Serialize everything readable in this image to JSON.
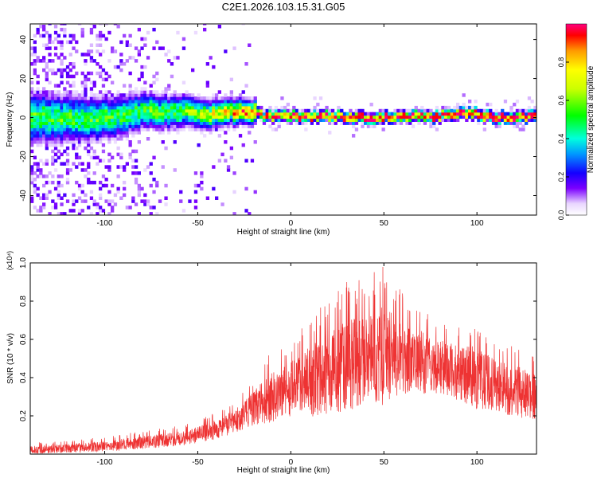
{
  "title": "C2E1.2026.103.15.31.G05",
  "colors": {
    "snr_line": "#ee3333",
    "axis": "#000000"
  },
  "chart_data": [
    {
      "type": "heatmap",
      "xlabel": "Height of straight line (km)",
      "ylabel": "Frequency (Hz)",
      "xlim": [
        -140,
        132
      ],
      "ylim": [
        -50,
        48
      ],
      "xticks": [
        -100,
        -50,
        0,
        50,
        100
      ],
      "yticks": [
        -40,
        -20,
        0,
        20,
        40
      ],
      "colorbar": {
        "label": "Normalized spectral amplitude",
        "range": [
          0,
          1
        ],
        "ticks": [
          0.0,
          0.2,
          0.4,
          0.6,
          0.8
        ],
        "colormap": "rainbow"
      },
      "ridge_center_hz": [
        [
          -140,
          0
        ],
        [
          -120,
          -1
        ],
        [
          -100,
          -1
        ],
        [
          -80,
          3
        ],
        [
          -60,
          2
        ],
        [
          -40,
          1
        ],
        [
          -25,
          3
        ],
        [
          -15,
          0
        ],
        [
          0,
          0
        ],
        [
          20,
          0
        ],
        [
          45,
          -1
        ],
        [
          60,
          0
        ],
        [
          80,
          0
        ],
        [
          95,
          2
        ],
        [
          110,
          -1
        ],
        [
          132,
          0
        ]
      ]
    },
    {
      "type": "line",
      "xlabel": "Height of straight line (km)",
      "ylabel": "SNR (10 * v/v)",
      "multiplier": "(x10⁴)",
      "xlim": [
        -140,
        132
      ],
      "ylim": [
        0,
        1.0
      ],
      "xticks": [
        -100,
        -50,
        0,
        50,
        100
      ],
      "yticks": [
        0.2,
        0.4,
        0.6,
        0.8,
        1.0
      ],
      "series": [
        {
          "x": [
            -140,
            -120,
            -100,
            -80,
            -60,
            -50,
            -40,
            -30,
            -20,
            -10,
            0,
            10,
            20,
            30,
            40,
            50,
            60,
            70,
            80,
            90,
            100,
            110,
            120,
            132
          ],
          "mean": [
            0.02,
            0.03,
            0.04,
            0.06,
            0.08,
            0.1,
            0.13,
            0.17,
            0.24,
            0.3,
            0.34,
            0.38,
            0.42,
            0.46,
            0.5,
            0.52,
            0.5,
            0.48,
            0.46,
            0.42,
            0.4,
            0.36,
            0.33,
            0.3
          ],
          "peak": [
            0.06,
            0.07,
            0.09,
            0.12,
            0.15,
            0.18,
            0.22,
            0.28,
            0.4,
            0.55,
            0.6,
            0.72,
            0.8,
            0.9,
            0.92,
            1.0,
            0.84,
            0.78,
            0.72,
            0.68,
            0.7,
            0.6,
            0.58,
            0.52
          ]
        }
      ]
    }
  ]
}
